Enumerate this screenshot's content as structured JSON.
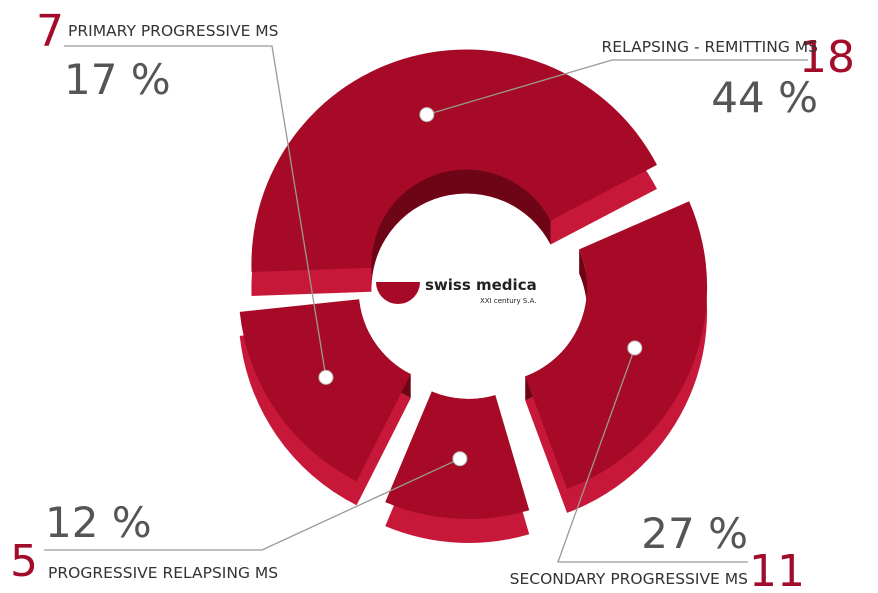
{
  "chart_data": {
    "type": "pie",
    "style": "3d-exploded-donut",
    "legend": "callout labels",
    "categories": [
      "RELAPSING - REMITTING  MS",
      "SECONDARY PROGRESSIVE MS",
      "PROGRESSIVE RELAPSING MS",
      "PRIMARY PROGRESSIVE MS"
    ],
    "counts": [
      "18",
      "11",
      "5",
      "7"
    ],
    "percent_labels": [
      "44 %",
      "27 %",
      "12 %",
      "17 %"
    ],
    "values": [
      44,
      27,
      12,
      17
    ]
  },
  "brand": {
    "name": "swiss medica",
    "subtitle": "XXI century S.A."
  },
  "colors": {
    "top": "#a60a26",
    "side": "#c8183a",
    "inner": "#6e0516",
    "leader": "#9a9a90",
    "count": "#a20c2a"
  }
}
